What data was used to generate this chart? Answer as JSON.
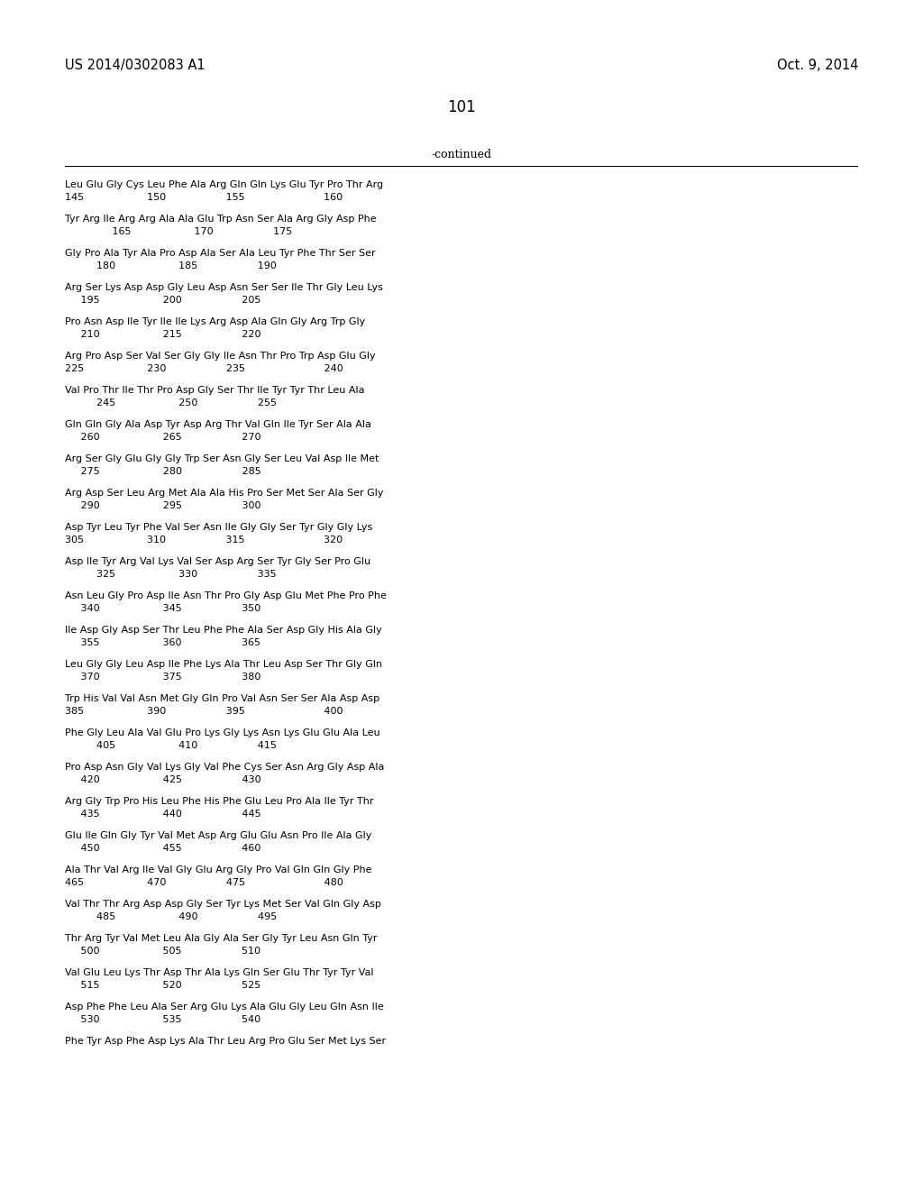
{
  "header_left": "US 2014/0302083 A1",
  "header_right": "Oct. 9, 2014",
  "page_number": "101",
  "continued_label": "-continued",
  "background_color": "#ffffff",
  "text_color": "#000000",
  "sequence_blocks": [
    [
      "Leu Glu Gly Cys Leu Phe Ala Arg Gln Gln Lys Glu Tyr Pro Thr Arg",
      "145                    150                   155                         160"
    ],
    [
      "Tyr Arg Ile Arg Arg Ala Ala Glu Trp Asn Ser Ala Arg Gly Asp Phe",
      "               165                    170                   175"
    ],
    [
      "Gly Pro Ala Tyr Ala Pro Asp Ala Ser Ala Leu Tyr Phe Thr Ser Ser",
      "          180                    185                   190"
    ],
    [
      "Arg Ser Lys Asp Asp Gly Leu Asp Asn Ser Ser Ile Thr Gly Leu Lys",
      "     195                    200                   205"
    ],
    [
      "Pro Asn Asp Ile Tyr Ile Ile Lys Arg Asp Ala Gln Gly Arg Trp Gly",
      "     210                    215                   220"
    ],
    [
      "Arg Pro Asp Ser Val Ser Gly Gly Ile Asn Thr Pro Trp Asp Glu Gly",
      "225                    230                   235                         240"
    ],
    [
      "Val Pro Thr Ile Thr Pro Asp Gly Ser Thr Ile Tyr Tyr Thr Leu Ala",
      "          245                    250                   255"
    ],
    [
      "Gln Gln Gly Ala Asp Tyr Asp Arg Thr Val Gln Ile Tyr Ser Ala Ala",
      "     260                    265                   270"
    ],
    [
      "Arg Ser Gly Glu Gly Gly Trp Ser Asn Gly Ser Leu Val Asp Ile Met",
      "     275                    280                   285"
    ],
    [
      "Arg Asp Ser Leu Arg Met Ala Ala His Pro Ser Met Ser Ala Ser Gly",
      "     290                    295                   300"
    ],
    [
      "Asp Tyr Leu Tyr Phe Val Ser Asn Ile Gly Gly Ser Tyr Gly Gly Lys",
      "305                    310                   315                         320"
    ],
    [
      "Asp Ile Tyr Arg Val Lys Val Ser Asp Arg Ser Tyr Gly Ser Pro Glu",
      "          325                    330                   335"
    ],
    [
      "Asn Leu Gly Pro Asp Ile Asn Thr Pro Gly Asp Glu Met Phe Pro Phe",
      "     340                    345                   350"
    ],
    [
      "Ile Asp Gly Asp Ser Thr Leu Phe Phe Ala Ser Asp Gly His Ala Gly",
      "     355                    360                   365"
    ],
    [
      "Leu Gly Gly Leu Asp Ile Phe Lys Ala Thr Leu Asp Ser Thr Gly Gln",
      "     370                    375                   380"
    ],
    [
      "Trp His Val Val Asn Met Gly Gln Pro Val Asn Ser Ser Ala Asp Asp",
      "385                    390                   395                         400"
    ],
    [
      "Phe Gly Leu Ala Val Glu Pro Lys Gly Lys Asn Lys Glu Glu Ala Leu",
      "          405                    410                   415"
    ],
    [
      "Pro Asp Asn Gly Val Lys Gly Val Phe Cys Ser Asn Arg Gly Asp Ala",
      "     420                    425                   430"
    ],
    [
      "Arg Gly Trp Pro His Leu Phe His Phe Glu Leu Pro Ala Ile Tyr Thr",
      "     435                    440                   445"
    ],
    [
      "Glu Ile Gln Gly Tyr Val Met Asp Arg Glu Glu Asn Pro Ile Ala Gly",
      "     450                    455                   460"
    ],
    [
      "Ala Thr Val Arg Ile Val Gly Glu Arg Gly Pro Val Gln Gln Gly Phe",
      "465                    470                   475                         480"
    ],
    [
      "Val Thr Thr Arg Asp Asp Gly Ser Tyr Lys Met Ser Val Gln Gly Asp",
      "          485                    490                   495"
    ],
    [
      "Thr Arg Tyr Val Met Leu Ala Gly Ala Ser Gly Tyr Leu Asn Gln Tyr",
      "     500                    505                   510"
    ],
    [
      "Val Glu Leu Lys Thr Asp Thr Ala Lys Gln Ser Glu Thr Tyr Tyr Val",
      "     515                    520                   525"
    ],
    [
      "Asp Phe Phe Leu Ala Ser Arg Glu Lys Ala Glu Gly Leu Gln Asn Ile",
      "     530                    535                   540"
    ],
    [
      "Phe Tyr Asp Phe Asp Lys Ala Thr Leu Arg Pro Glu Ser Met Lys Ser",
      ""
    ]
  ]
}
